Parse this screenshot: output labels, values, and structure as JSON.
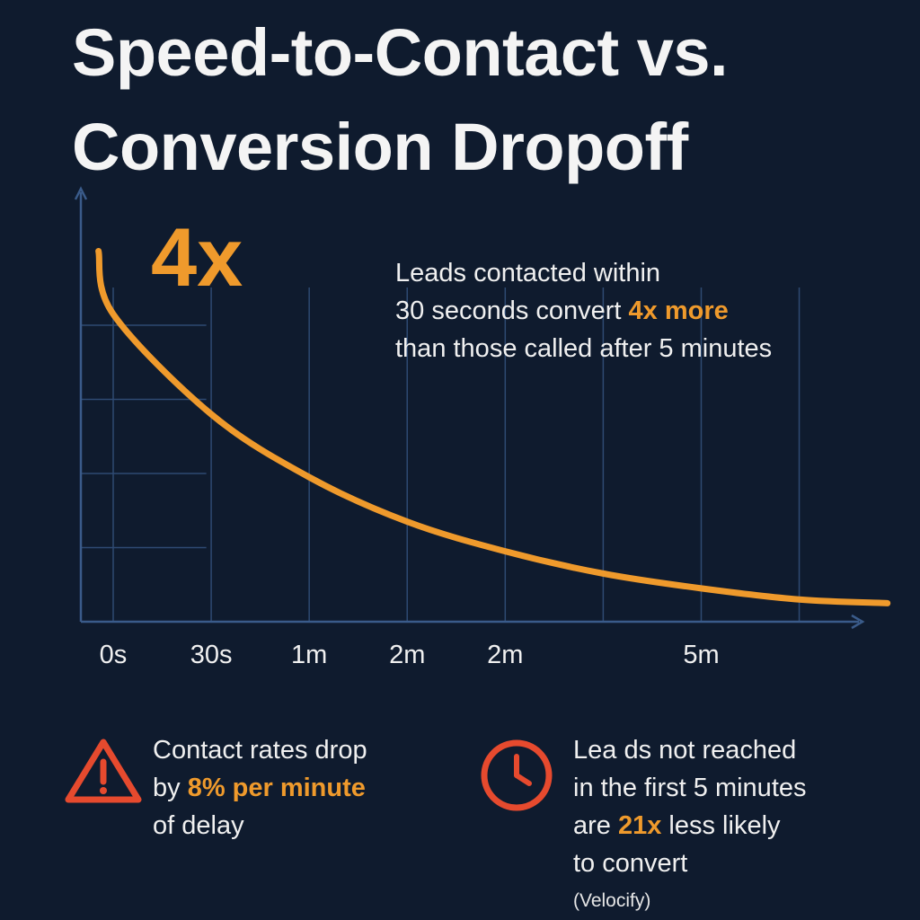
{
  "title": {
    "line1": "Speed-to-Contact vs.",
    "line2": "Conversion Dropoff"
  },
  "colors": {
    "background": "#0f1b2e",
    "accent": "#ef9a2c",
    "grid": "#2e4a72",
    "alert": "#e64a2e"
  },
  "chart_data": {
    "type": "line",
    "title": "Speed-to-Contact vs. Conversion Dropoff",
    "xlabel": "",
    "ylabel": "",
    "grid": true,
    "categories": [
      "0s",
      "30s",
      "1m",
      "2m",
      "2m",
      "",
      "5m"
    ],
    "x": [
      -0.15,
      0,
      1,
      2,
      3,
      4,
      5,
      6,
      7,
      7.9
    ],
    "series": [
      {
        "name": "Conversion",
        "values": [
          1.0,
          0.83,
          0.56,
          0.39,
          0.27,
          0.19,
          0.13,
          0.09,
          0.06,
          0.05
        ]
      }
    ],
    "xlim": [
      -0.33,
      7.6
    ],
    "ylim": [
      0,
      1.12
    ],
    "big_label": "4x"
  },
  "callout": {
    "line1": "Leads contacted within",
    "line2_pre": "30 seconds convert ",
    "line2_accent": "4x more",
    "line3": "than those called after 5 minutes"
  },
  "footer": {
    "left": {
      "icon": "warning-triangle-icon",
      "line1": "Contact rates drop",
      "line2_pre": "by ",
      "line2_accent": "8% per minute",
      "line3": "of delay"
    },
    "right": {
      "icon": "clock-icon",
      "line1": "Lea ds not reached",
      "line2": "in the first 5 minutes",
      "line3_pre": "are ",
      "line3_accent": "21x",
      "line3_post": " less likely",
      "line4": "to convert",
      "source": "(Velocify)"
    }
  }
}
